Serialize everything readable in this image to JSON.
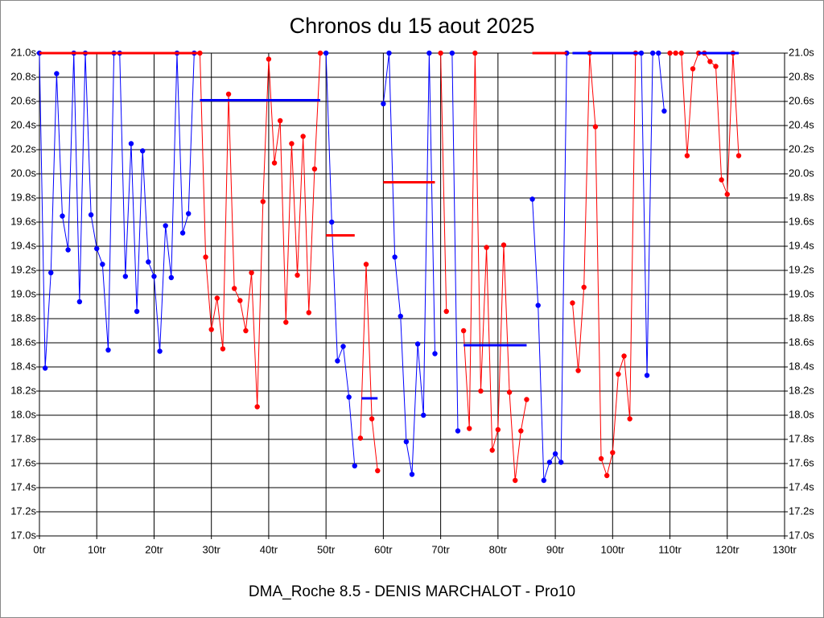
{
  "chart_data": {
    "type": "line",
    "title": "Chronos du 15 aout 2025",
    "subtitle": "DMA_Roche 8.5 - DENIS MARCHALOT - Pro10",
    "xlim": [
      0,
      130
    ],
    "ylim": [
      17.0,
      21.0
    ],
    "xticks": [
      {
        "value": 0,
        "label": "0tr"
      },
      {
        "value": 10,
        "label": "10tr"
      },
      {
        "value": 20,
        "label": "20tr"
      },
      {
        "value": 30,
        "label": "30tr"
      },
      {
        "value": 40,
        "label": "40tr"
      },
      {
        "value": 50,
        "label": "50tr"
      },
      {
        "value": 60,
        "label": "60tr"
      },
      {
        "value": 70,
        "label": "70tr"
      },
      {
        "value": 80,
        "label": "80tr"
      },
      {
        "value": 90,
        "label": "90tr"
      },
      {
        "value": 100,
        "label": "100tr"
      },
      {
        "value": 110,
        "label": "110tr"
      },
      {
        "value": 120,
        "label": "120tr"
      },
      {
        "value": 130,
        "label": "130tr"
      }
    ],
    "yticks": [
      {
        "value": 17.0,
        "label": "17.0s"
      },
      {
        "value": 17.2,
        "label": "17.2s"
      },
      {
        "value": 17.4,
        "label": "17.4s"
      },
      {
        "value": 17.6,
        "label": "17.6s"
      },
      {
        "value": 17.8,
        "label": "17.8s"
      },
      {
        "value": 18.0,
        "label": "18.0s"
      },
      {
        "value": 18.2,
        "label": "18.2s"
      },
      {
        "value": 18.4,
        "label": "18.4s"
      },
      {
        "value": 18.6,
        "label": "18.6s"
      },
      {
        "value": 18.8,
        "label": "18.8s"
      },
      {
        "value": 19.0,
        "label": "19.0s"
      },
      {
        "value": 19.2,
        "label": "19.2s"
      },
      {
        "value": 19.4,
        "label": "19.4s"
      },
      {
        "value": 19.6,
        "label": "19.6s"
      },
      {
        "value": 19.8,
        "label": "19.8s"
      },
      {
        "value": 20.0,
        "label": "20.0s"
      },
      {
        "value": 20.2,
        "label": "20.2s"
      },
      {
        "value": 20.4,
        "label": "20.4s"
      },
      {
        "value": 20.6,
        "label": "20.6s"
      },
      {
        "value": 20.8,
        "label": "20.8s"
      },
      {
        "value": 21.0,
        "label": "21.0s"
      }
    ],
    "grid": true,
    "series": [
      {
        "color": "#0000ff",
        "markers": true,
        "line_width": 1,
        "x": [
          0,
          1,
          2,
          3,
          4,
          5,
          6,
          7,
          8,
          9,
          10,
          11,
          12,
          13,
          14,
          15,
          16,
          17,
          18,
          19,
          20,
          21,
          22,
          23,
          24,
          25,
          26,
          27
        ],
        "values": [
          21.0,
          18.39,
          19.18,
          20.83,
          19.65,
          19.37,
          21.0,
          18.94,
          21.0,
          19.66,
          19.38,
          19.25,
          18.54,
          21.0,
          21.0,
          19.15,
          20.25,
          18.86,
          20.19,
          19.27,
          19.15,
          18.53,
          19.57,
          19.14,
          21.0,
          19.51,
          19.67,
          21.0
        ]
      },
      {
        "color": "#ff0000",
        "markers": true,
        "line_width": 1,
        "x": [
          28,
          29,
          30,
          31,
          32,
          33,
          34,
          35,
          36,
          37,
          38,
          39,
          40,
          41,
          42,
          43,
          44,
          45,
          46,
          47,
          48,
          49
        ],
        "values": [
          21.0,
          19.31,
          18.71,
          18.97,
          18.55,
          20.66,
          19.05,
          18.95,
          18.7,
          19.18,
          18.07,
          19.77,
          20.95,
          20.09,
          20.44,
          18.77,
          20.25,
          19.16,
          20.31,
          18.85,
          20.04,
          21.0
        ]
      },
      {
        "color": "#0000ff",
        "markers": true,
        "line_width": 1,
        "x": [
          50,
          51,
          52,
          53,
          54,
          55
        ],
        "values": [
          21.0,
          19.6,
          18.45,
          18.57,
          18.15,
          17.58
        ]
      },
      {
        "color": "#ff0000",
        "markers": true,
        "line_width": 1,
        "x": [
          56,
          57,
          58,
          59
        ],
        "values": [
          17.81,
          19.25,
          17.97,
          17.54
        ]
      },
      {
        "color": "#0000ff",
        "markers": true,
        "line_width": 1,
        "x": [
          60,
          61,
          62,
          63,
          64,
          65,
          66,
          67,
          68,
          69
        ],
        "values": [
          20.58,
          21.0,
          19.31,
          18.82,
          17.78,
          17.51,
          18.59,
          18.0,
          21.0,
          18.51
        ]
      },
      {
        "color": "#ff0000",
        "markers": true,
        "line_width": 1,
        "x": [
          70,
          71
        ],
        "values": [
          21.0,
          18.86
        ]
      },
      {
        "color": "#0000ff",
        "markers": true,
        "line_width": 1,
        "x": [
          72,
          73
        ],
        "values": [
          21.0,
          17.87
        ]
      },
      {
        "color": "#ff0000",
        "markers": true,
        "line_width": 1,
        "x": [
          74,
          75,
          76,
          77,
          78,
          79,
          80,
          81,
          82,
          83,
          84,
          85
        ],
        "values": [
          18.7,
          17.89,
          21.0,
          18.2,
          19.39,
          17.71,
          17.88,
          19.41,
          18.19,
          17.46,
          17.87,
          18.13
        ]
      },
      {
        "color": "#0000ff",
        "markers": true,
        "line_width": 1,
        "x": [
          86,
          87,
          88,
          89,
          90,
          91,
          92
        ],
        "values": [
          19.79,
          18.91,
          17.46,
          17.61,
          17.68,
          17.61,
          21.0
        ]
      },
      {
        "color": "#ff0000",
        "markers": true,
        "line_width": 1,
        "x": [
          93,
          94,
          95,
          96,
          97,
          98,
          99,
          100,
          101,
          102,
          103,
          104
        ],
        "values": [
          18.93,
          18.37,
          19.06,
          21.0,
          20.39,
          17.64,
          17.5,
          17.69,
          18.34,
          18.49,
          17.97,
          21.0
        ]
      },
      {
        "color": "#0000ff",
        "markers": true,
        "line_width": 1,
        "x": [
          105,
          106,
          107,
          108,
          109
        ],
        "values": [
          21.0,
          18.33,
          21.0,
          21.0,
          20.52
        ]
      },
      {
        "color": "#ff0000",
        "markers": true,
        "line_width": 1,
        "x": [
          110,
          111,
          112,
          113,
          114,
          115,
          116,
          117,
          118,
          119,
          120,
          121,
          122
        ],
        "values": [
          21.0,
          21.0,
          21.0,
          20.15,
          20.87,
          21.0,
          21.0,
          20.93,
          20.89,
          19.95,
          19.83,
          21.0,
          20.15
        ]
      },
      {
        "color": "#ff0000",
        "markers": false,
        "line_width": 3,
        "x": [
          0,
          28
        ],
        "values": [
          21.0,
          21.0
        ]
      },
      {
        "color": "#0000ff",
        "markers": false,
        "line_width": 3,
        "x": [
          28,
          49
        ],
        "values": [
          20.61,
          20.61
        ]
      },
      {
        "color": "#ff0000",
        "markers": false,
        "line_width": 3,
        "x": [
          50,
          55
        ],
        "values": [
          19.49,
          19.49
        ]
      },
      {
        "color": "#0000ff",
        "markers": false,
        "line_width": 3,
        "x": [
          56.2,
          59
        ],
        "values": [
          18.14,
          18.14
        ]
      },
      {
        "color": "#ff0000",
        "markers": false,
        "line_width": 3,
        "x": [
          60,
          69
        ],
        "values": [
          19.93,
          19.93
        ]
      },
      {
        "color": "#0000ff",
        "markers": false,
        "line_width": 3,
        "x": [
          74,
          85
        ],
        "values": [
          18.58,
          18.58
        ]
      },
      {
        "color": "#ff0000",
        "markers": false,
        "line_width": 3,
        "x": [
          86,
          92
        ],
        "values": [
          21.0,
          21.0
        ]
      },
      {
        "color": "#0000ff",
        "markers": false,
        "line_width": 3,
        "x": [
          93,
          105
        ],
        "values": [
          21.0,
          21.0
        ]
      },
      {
        "color": "#0000ff",
        "markers": false,
        "line_width": 3,
        "x": [
          115,
          122
        ],
        "values": [
          21.0,
          21.0
        ]
      }
    ]
  }
}
